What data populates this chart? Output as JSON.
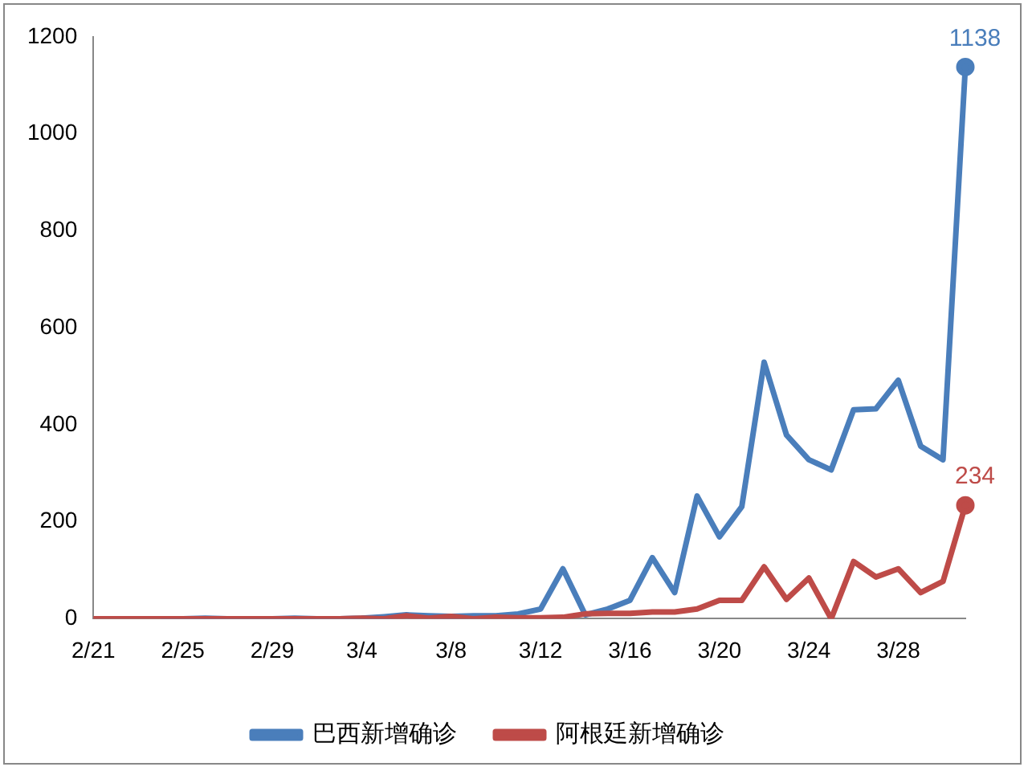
{
  "chart_data": {
    "type": "line",
    "categories": [
      "2/21",
      null,
      null,
      null,
      "2/25",
      null,
      null,
      null,
      "2/29",
      null,
      null,
      null,
      "3/4",
      null,
      null,
      null,
      "3/8",
      null,
      null,
      null,
      "3/12",
      null,
      null,
      null,
      "3/16",
      null,
      null,
      null,
      "3/20",
      null,
      null,
      null,
      "3/24",
      null,
      null,
      null,
      "3/28",
      null,
      null,
      null
    ],
    "series": [
      {
        "name": "巴西新增确诊",
        "color": "#4a7ebb",
        "values": [
          null,
          null,
          null,
          0,
          0,
          1,
          0,
          0,
          0,
          1,
          0,
          0,
          1,
          4,
          8,
          6,
          5,
          6,
          6,
          10,
          20,
          103,
          8,
          20,
          38,
          126,
          54,
          253,
          169,
          231,
          529,
          379,
          328,
          307,
          431,
          433,
          492,
          356,
          328,
          1138
        ],
        "value_labels": [
          null,
          null,
          null,
          null,
          null,
          null,
          null,
          null,
          null,
          null,
          null,
          null,
          null,
          null,
          null,
          null,
          null,
          null,
          null,
          null,
          null,
          null,
          null,
          null,
          null,
          null,
          null,
          null,
          null,
          null,
          null,
          null,
          null,
          null,
          null,
          null,
          null,
          null,
          null,
          "1138"
        ]
      },
      {
        "name": "阿根廷新增确诊",
        "color": "#be4b48",
        "values": [
          0,
          0,
          0,
          0,
          0,
          0,
          0,
          0,
          0,
          0,
          0,
          0,
          1,
          0,
          6,
          1,
          5,
          0,
          3,
          2,
          2,
          3,
          10,
          11,
          11,
          14,
          14,
          20,
          38,
          38,
          107,
          40,
          84,
          0,
          118,
          86,
          103,
          54,
          77,
          234
        ],
        "value_labels": [
          null,
          null,
          null,
          null,
          null,
          null,
          null,
          null,
          null,
          null,
          null,
          null,
          null,
          null,
          null,
          null,
          null,
          null,
          null,
          null,
          null,
          null,
          null,
          null,
          null,
          null,
          null,
          null,
          null,
          null,
          null,
          null,
          null,
          null,
          null,
          null,
          null,
          null,
          null,
          "234"
        ]
      }
    ],
    "ylim": [
      0,
      1200
    ],
    "yticks": [
      0,
      200,
      400,
      600,
      800,
      1000,
      1200
    ],
    "grid": false,
    "legend": "bottom",
    "marker": "none",
    "line_style": "solid"
  }
}
